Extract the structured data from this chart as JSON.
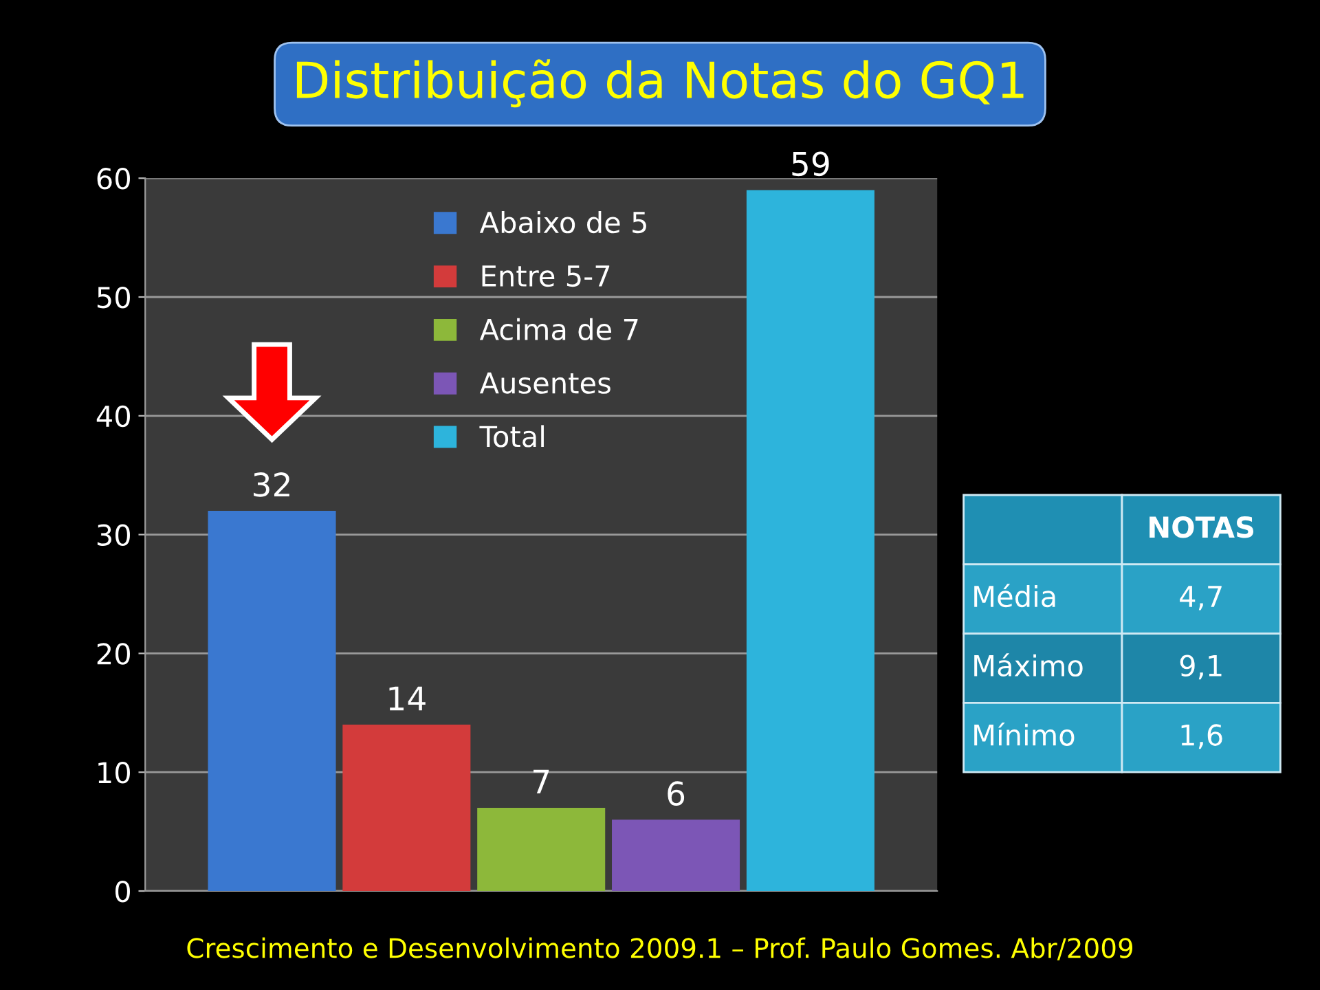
{
  "chart_data": {
    "type": "bar",
    "title": "Distribuição da Notas do GQ1",
    "categories": [
      null
    ],
    "series": [
      {
        "name": "Abaixo de 5",
        "color": "#3a78d0",
        "values": [
          32
        ]
      },
      {
        "name": "Entre 5-7",
        "color": "#d33b3b",
        "values": [
          14
        ]
      },
      {
        "name": "Acima de 7",
        "color": "#8db83a",
        "values": [
          7
        ]
      },
      {
        "name": "Ausentes",
        "color": "#7c56b6",
        "values": [
          6
        ]
      },
      {
        "name": "Total",
        "color": "#2db4dc",
        "values": [
          59
        ]
      }
    ],
    "ylim": [
      0,
      60
    ],
    "yticks": [
      0,
      10,
      20,
      30,
      40,
      50,
      60
    ],
    "grid": "y",
    "legend": "top",
    "data_labels": true,
    "tick_labels": "y",
    "annotations": [
      "NOTAS",
      "Média",
      "4,7",
      "Máximo",
      "9,1",
      "Mínimo",
      "1,6",
      "Crescimento e Desenvolvimento 2009.1 – Prof. Paulo Gomes. Abr/2009"
    ]
  }
}
